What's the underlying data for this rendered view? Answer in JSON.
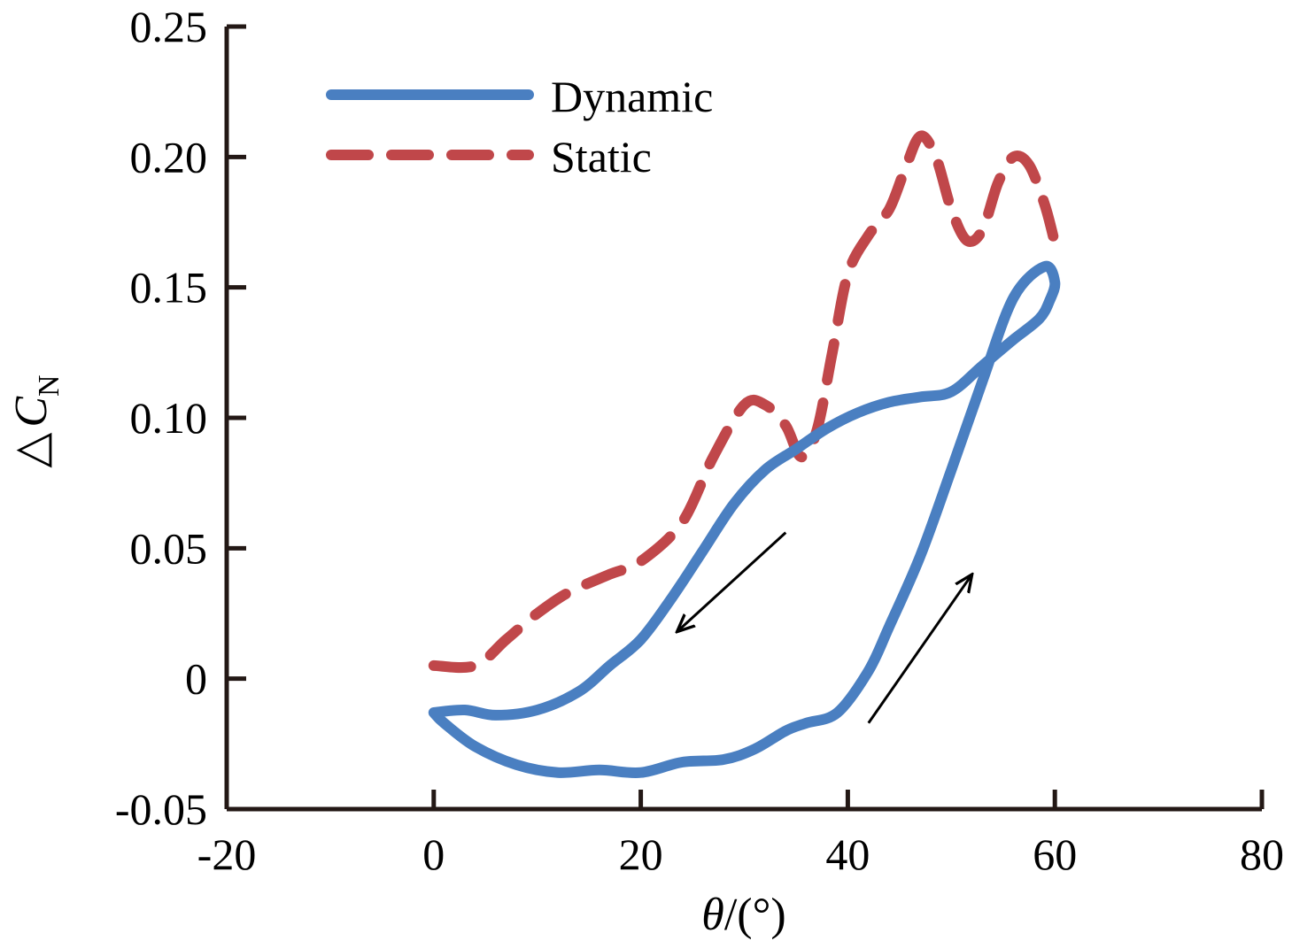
{
  "chart_data": {
    "type": "line",
    "title": "",
    "xlabel": "θ/(°)",
    "ylabel": "ΔC_N",
    "ylabel_parts": {
      "prefix": "△",
      "symbol": "C",
      "subscript": "N"
    },
    "xlabel_parts": {
      "symbol": "θ",
      "unit": "/(°)"
    },
    "xlim": [
      -20,
      80
    ],
    "ylim": [
      -0.05,
      0.25
    ],
    "x_ticks": [
      -20,
      0,
      20,
      40,
      60,
      80
    ],
    "x_tick_labels": [
      "-20",
      "0",
      "20",
      "40",
      "60",
      "80"
    ],
    "y_ticks": [
      -0.05,
      0,
      0.05,
      0.1,
      0.15,
      0.2,
      0.25
    ],
    "y_tick_labels": [
      "-0.05",
      "0",
      "0.05",
      "0.10",
      "0.15",
      "0.20",
      "0.25"
    ],
    "grid": false,
    "legend_position": "top-left",
    "series": [
      {
        "name": "Dynamic",
        "style": "solid",
        "color": "#4a7fc1",
        "x": [
          0,
          3,
          6,
          10,
          14,
          17,
          20,
          23,
          26,
          29,
          32,
          35,
          38,
          41,
          44,
          47,
          50,
          53,
          56,
          58.5,
          59.5,
          60,
          59,
          56,
          53,
          50,
          47,
          44,
          42,
          39,
          36,
          34,
          31,
          28,
          24,
          20,
          16,
          12,
          8,
          4,
          1,
          0
        ],
        "y": [
          -0.013,
          -0.012,
          -0.014,
          -0.012,
          -0.005,
          0.005,
          0.015,
          0.031,
          0.049,
          0.067,
          0.08,
          0.088,
          0.096,
          0.102,
          0.106,
          0.108,
          0.11,
          0.12,
          0.13,
          0.138,
          0.145,
          0.152,
          0.158,
          0.146,
          0.114,
          0.08,
          0.047,
          0.02,
          0.003,
          -0.013,
          -0.017,
          -0.02,
          -0.027,
          -0.031,
          -0.032,
          -0.036,
          -0.035,
          -0.036,
          -0.033,
          -0.026,
          -0.017,
          -0.013
        ]
      },
      {
        "name": "Static",
        "style": "dashed",
        "color": "#c0474a",
        "x": [
          0,
          4,
          7,
          10,
          13,
          17,
          20,
          24,
          27,
          30,
          32,
          34,
          35.5,
          37,
          38.5,
          40,
          42,
          44,
          45.5,
          47,
          48.5,
          50,
          51.5,
          53,
          54.5,
          56,
          57.5,
          59,
          60
        ],
        "y": [
          0.005,
          0.005,
          0.015,
          0.025,
          0.033,
          0.04,
          0.045,
          0.06,
          0.085,
          0.105,
          0.105,
          0.097,
          0.085,
          0.095,
          0.125,
          0.155,
          0.17,
          0.18,
          0.195,
          0.208,
          0.2,
          0.18,
          0.168,
          0.172,
          0.19,
          0.2,
          0.197,
          0.182,
          0.167
        ]
      }
    ],
    "annotations": [
      {
        "type": "arrow",
        "from": [
          34,
          0.056
        ],
        "to": [
          23.5,
          0.018
        ],
        "meaning": "decreasing angle"
      },
      {
        "type": "arrow",
        "from": [
          42,
          -0.017
        ],
        "to": [
          52,
          0.04
        ],
        "meaning": "increasing angle"
      }
    ]
  }
}
